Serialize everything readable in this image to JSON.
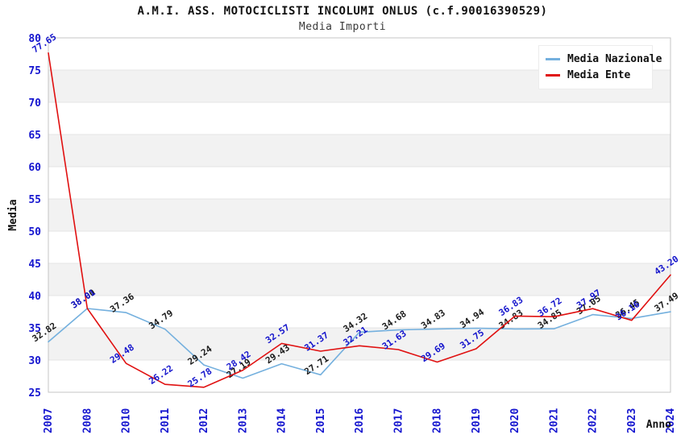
{
  "header": {
    "title": "A.M.I. ASS. MOTOCICLISTI INCOLUMI ONLUS (c.f.90016390529)",
    "subtitle": "Media Importi"
  },
  "chart_data": {
    "type": "line",
    "title": "A.M.I. ASS. MOTOCICLISTI INCOLUMI ONLUS (c.f.90016390529)",
    "subtitle": "Media Importi",
    "xlabel": "Anno",
    "ylabel": "Media",
    "ylim": [
      25,
      80
    ],
    "ytick_step": 5,
    "grid": "horizontal gridlines with alternating gray bands every 5 units",
    "legend_position": "top-right",
    "band_color": "#f2f2f2",
    "gridline_color": "#e4e4e4",
    "axis_tick_color": "#1515cf",
    "x": [
      "2007",
      "2008",
      "2010",
      "2011",
      "2012",
      "2013",
      "2014",
      "2015",
      "2016",
      "2017",
      "2018",
      "2019",
      "2020",
      "2021",
      "2022",
      "2023",
      "2024"
    ],
    "series": [
      {
        "name": "Media Nazionale",
        "color": "#74b0de",
        "label_color": "#1a1a1a",
        "values": [
          32.82,
          38.0,
          37.36,
          34.79,
          29.24,
          27.19,
          29.43,
          27.71,
          34.32,
          34.68,
          34.83,
          34.94,
          34.83,
          34.85,
          37.05,
          36.45,
          37.49
        ]
      },
      {
        "name": "Media Ente",
        "color": "#e01010",
        "label_color": "#1414cc",
        "values": [
          77.65,
          38.01,
          29.48,
          26.22,
          25.78,
          28.42,
          32.57,
          31.37,
          32.21,
          31.63,
          29.69,
          31.75,
          36.83,
          36.72,
          37.97,
          36.16,
          43.2
        ]
      }
    ]
  }
}
